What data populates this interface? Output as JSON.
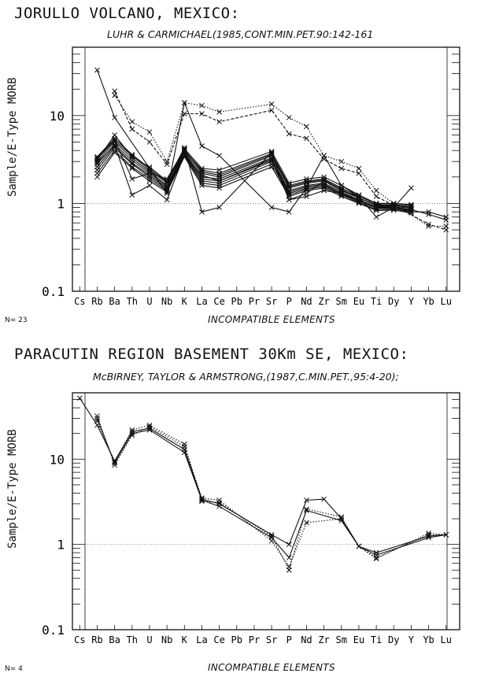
{
  "chart_data": [
    {
      "type": "line",
      "title": "JORULLO VOLCANO, MEXICO:",
      "subtitle": "LUHR & CARMICHAEL(1985,CONT.MIN.PET.90:142-161",
      "ylabel": "Sample/E-Type MORB",
      "xlabel": "INCOMPATIBLE ELEMENTS",
      "n_label": "N= 23",
      "y_scale": "log",
      "ylim": [
        0.1,
        60
      ],
      "y_ticks": [
        "0.1",
        "1",
        "10"
      ],
      "reference_line": 1,
      "categories": [
        "Cs",
        "Rb",
        "Ba",
        "Th",
        "U",
        "Nb",
        "K",
        "La",
        "Ce",
        "Pb",
        "Pr",
        "Sr",
        "P",
        "Nd",
        "Zr",
        "Sm",
        "Eu",
        "Ti",
        "Dy",
        "Y",
        "Yb",
        "Lu"
      ],
      "series": [
        {
          "style": "solid",
          "values": [
            null,
            3.2,
            5.2,
            3.5,
            2.4,
            1.7,
            4.0,
            2.4,
            2.2,
            null,
            null,
            3.7,
            1.6,
            1.8,
            1.9,
            1.5,
            1.2,
            1.0,
            1.0,
            0.95,
            null,
            null
          ]
        },
        {
          "style": "solid",
          "values": [
            null,
            3.0,
            5.0,
            3.3,
            2.3,
            1.6,
            3.9,
            2.2,
            2.0,
            null,
            null,
            3.5,
            1.5,
            1.7,
            1.8,
            1.4,
            1.15,
            0.95,
            0.95,
            0.9,
            null,
            null
          ]
        },
        {
          "style": "solid",
          "values": [
            null,
            2.8,
            4.7,
            3.1,
            2.2,
            1.55,
            3.8,
            2.0,
            1.9,
            null,
            null,
            3.3,
            1.4,
            1.6,
            1.7,
            1.35,
            1.1,
            0.92,
            0.92,
            0.88,
            null,
            null
          ]
        },
        {
          "style": "solid",
          "values": [
            null,
            2.6,
            4.5,
            2.9,
            2.1,
            1.5,
            3.7,
            1.9,
            1.8,
            null,
            null,
            3.1,
            1.35,
            1.55,
            1.65,
            1.3,
            1.08,
            0.9,
            0.9,
            0.85,
            null,
            null
          ]
        },
        {
          "style": "solid",
          "values": [
            null,
            2.4,
            4.3,
            2.8,
            2.0,
            1.45,
            3.6,
            1.8,
            1.7,
            null,
            null,
            3.0,
            1.3,
            1.5,
            1.6,
            1.28,
            1.05,
            0.88,
            0.88,
            0.83,
            null,
            null
          ]
        },
        {
          "style": "solid",
          "values": [
            null,
            2.2,
            4.0,
            2.6,
            1.9,
            1.4,
            3.5,
            1.7,
            1.6,
            null,
            null,
            2.8,
            1.25,
            1.45,
            1.55,
            1.25,
            1.02,
            0.85,
            0.86,
            0.8,
            null,
            null
          ]
        },
        {
          "style": "solid",
          "values": [
            null,
            2.0,
            3.8,
            2.5,
            1.8,
            1.35,
            3.4,
            1.6,
            1.5,
            null,
            null,
            2.6,
            1.2,
            1.4,
            1.5,
            1.2,
            1.0,
            0.83,
            0.84,
            0.78,
            null,
            null
          ]
        },
        {
          "style": "solid",
          "values": [
            null,
            3.4,
            5.5,
            3.6,
            2.5,
            1.75,
            4.2,
            2.5,
            2.4,
            null,
            null,
            3.9,
            1.7,
            1.9,
            2.0,
            1.6,
            1.25,
            1.0,
            1.0,
            0.97,
            null,
            null
          ]
        },
        {
          "style": "solid",
          "values": [
            null,
            3.3,
            5.3,
            1.9,
            2.2,
            1.9,
            4.1,
            2.3,
            2.1,
            null,
            null,
            3.6,
            1.55,
            1.75,
            1.85,
            1.45,
            1.15,
            0.97,
            0.97,
            0.92,
            null,
            null
          ]
        },
        {
          "style": "solid",
          "values": [
            null,
            2.9,
            4.6,
            1.25,
            1.6,
            1.1,
            3.6,
            2.1,
            1.8,
            null,
            null,
            3.2,
            1.1,
            1.2,
            1.4,
            1.3,
            1.1,
            0.9,
            0.95,
            0.9,
            null,
            null
          ]
        },
        {
          "style": "solid",
          "values": [
            null,
            33,
            9.5,
            null,
            null,
            1.3,
            14,
            4.5,
            3.5,
            null,
            null,
            0.9,
            0.8,
            1.5,
            3.5,
            1.6,
            1.2,
            0.7,
            0.9,
            1.5,
            null,
            null
          ]
        },
        {
          "style": "solid",
          "values": [
            null,
            3.1,
            6.0,
            3.4,
            2.6,
            1.8,
            4.3,
            0.8,
            0.9,
            null,
            null,
            3.8,
            1.1,
            1.3,
            1.8,
            1.4,
            1.2,
            1.0,
            0.9,
            0.8,
            0.8,
            0.7
          ]
        },
        {
          "style": "solid",
          "values": [
            null,
            null,
            null,
            null,
            null,
            null,
            null,
            null,
            null,
            null,
            null,
            null,
            null,
            null,
            null,
            null,
            null,
            0.95,
            0.9,
            0.85,
            0.75,
            0.65
          ]
        },
        {
          "style": "dotted",
          "values": [
            null,
            null,
            17,
            8.5,
            6.5,
            3.0,
            14,
            13,
            11,
            null,
            null,
            13.5,
            9.5,
            7.5,
            3.5,
            3.0,
            2.5,
            1.4,
            1.0,
            null,
            0.55,
            0.55
          ]
        },
        {
          "style": "dashed",
          "values": [
            null,
            null,
            19,
            7,
            5,
            2.8,
            10.5,
            10.5,
            8.5,
            null,
            null,
            11.5,
            6.2,
            5.5,
            3.2,
            2.5,
            2.2,
            1.2,
            0.95,
            null,
            0.58,
            0.5
          ]
        }
      ]
    },
    {
      "type": "line",
      "title": "PARACUTIN REGION BASEMENT 30Km SE, MEXICO:",
      "subtitle": "McBIRNEY, TAYLOR & ARMSTRONG,(1987,C.MIN.PET.,95:4-20);",
      "ylabel": "Sample/E-Type MORB",
      "xlabel": "INCOMPATIBLE ELEMENTS",
      "n_label": "N= 4",
      "y_scale": "log",
      "ylim": [
        0.1,
        60
      ],
      "y_ticks": [
        "0.1",
        "1",
        "10"
      ],
      "reference_line": 1,
      "categories": [
        "Cs",
        "Rb",
        "Ba",
        "Th",
        "U",
        "Nb",
        "K",
        "La",
        "Ce",
        "Pb",
        "Pr",
        "Sr",
        "P",
        "Nd",
        "Zr",
        "Sm",
        "Eu",
        "Ti",
        "Dy",
        "Y",
        "Yb",
        "Lu"
      ],
      "series": [
        {
          "style": "solid",
          "values": [
            52,
            25,
            9.5,
            21,
            23,
            null,
            13,
            3.4,
            3.0,
            null,
            null,
            1.3,
            1.0,
            3.3,
            3.4,
            2.0,
            0.95,
            0.8,
            null,
            null,
            1.25,
            1.3
          ]
        },
        {
          "style": "solid",
          "values": [
            null,
            30,
            9.0,
            20,
            22,
            null,
            12,
            3.3,
            2.8,
            null,
            null,
            1.2,
            0.7,
            2.5,
            null,
            1.9,
            0.95,
            0.75,
            null,
            null,
            1.2,
            1.3
          ]
        },
        {
          "style": "dotted",
          "values": [
            null,
            32,
            8.5,
            19,
            24,
            null,
            14,
            3.5,
            3.3,
            null,
            null,
            1.1,
            0.55,
            1.8,
            null,
            2.0,
            0.95,
            0.7,
            null,
            null,
            1.3,
            1.3
          ]
        },
        {
          "style": "dotted",
          "values": [
            null,
            28,
            9.2,
            22,
            25,
            null,
            15,
            3.2,
            3.1,
            null,
            null,
            1.25,
            0.5,
            2.6,
            null,
            2.1,
            0.95,
            0.68,
            null,
            null,
            1.35,
            1.3
          ]
        }
      ]
    }
  ]
}
